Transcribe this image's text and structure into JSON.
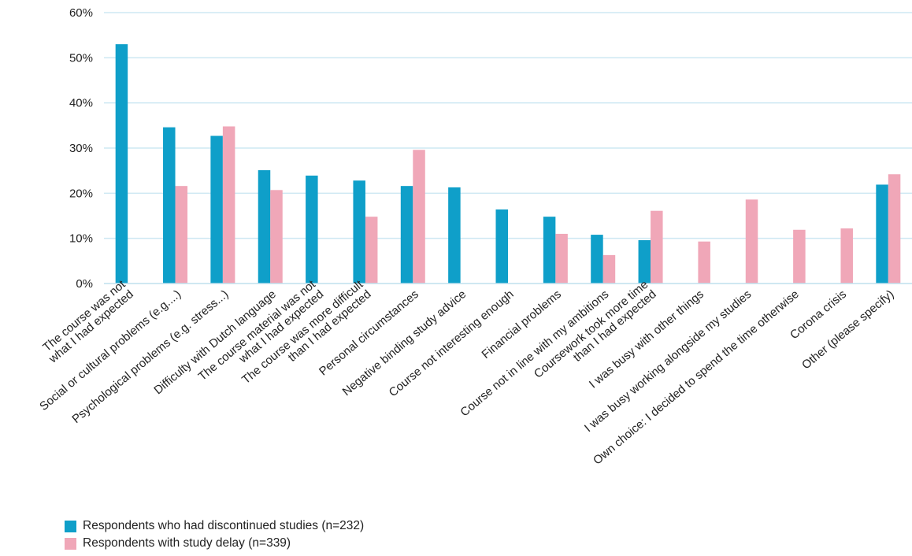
{
  "chart_data": {
    "type": "bar",
    "title": "",
    "xlabel": "",
    "ylabel": "",
    "ylim": [
      0,
      60
    ],
    "y_ticks": [
      "0%",
      "10%",
      "20%",
      "30%",
      "40%",
      "50%",
      "60%"
    ],
    "y_tick_values": [
      0,
      10,
      20,
      30,
      40,
      50,
      60
    ],
    "grid": true,
    "legend_position": "bottom-left",
    "categories": [
      [
        "The course was not",
        "what I had expected"
      ],
      [
        "Social or cultural problems (e.g....)"
      ],
      [
        "Psychological problems (e.g. stress...)"
      ],
      [
        "Difficulty with Dutch language"
      ],
      [
        "The course material was not",
        "what I had expected"
      ],
      [
        "The course was more difficult",
        "than I had expected"
      ],
      [
        "Personal circumstances"
      ],
      [
        "Negative binding study advice"
      ],
      [
        "Course not interesting enough"
      ],
      [
        "Financial problems"
      ],
      [
        "Course not in line with my ambitions"
      ],
      [
        "Coursework took more time",
        "than I had expected"
      ],
      [
        "I was busy with other things"
      ],
      [
        "I was busy working alongside my studies"
      ],
      [
        "Own choice: I decided to spend the time otherwise"
      ],
      [
        "Corona crisis"
      ],
      [
        "Other (please specify)"
      ]
    ],
    "series": [
      {
        "name": "Respondents who had discontinued studies (n=232)",
        "color": "#0f9fc9",
        "values": [
          53,
          34.6,
          32.7,
          25.1,
          23.9,
          22.8,
          21.6,
          21.3,
          16.4,
          14.8,
          10.8,
          9.6,
          null,
          null,
          null,
          null,
          21.9
        ]
      },
      {
        "name": "Respondents with study delay (n=339)",
        "color": "#f0a7b8",
        "values": [
          null,
          21.6,
          34.8,
          20.7,
          null,
          14.8,
          29.6,
          null,
          null,
          11.0,
          6.3,
          16.1,
          9.3,
          18.6,
          11.9,
          12.2,
          24.2
        ]
      }
    ]
  }
}
